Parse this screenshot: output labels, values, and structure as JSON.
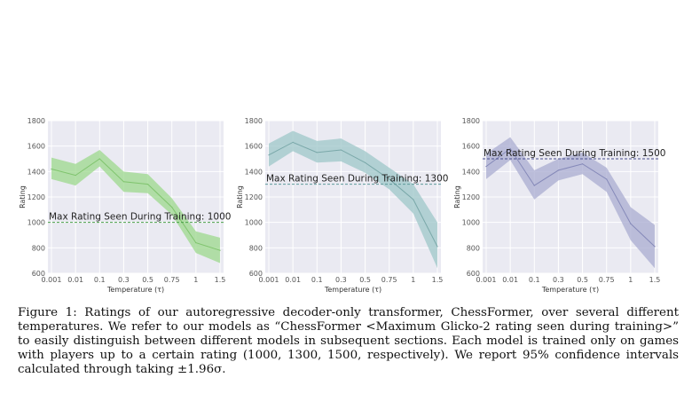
{
  "chart_data": [
    {
      "type": "line",
      "categories": [
        "0.001",
        "0.01",
        "0.1",
        "0.3",
        "0.5",
        "0.75",
        "1",
        "1.5"
      ],
      "values": [
        1420,
        1370,
        1500,
        1320,
        1300,
        1120,
        840,
        780
      ],
      "lower": [
        1340,
        1290,
        1440,
        1240,
        1230,
        1060,
        760,
        680
      ],
      "upper": [
        1510,
        1460,
        1570,
        1400,
        1380,
        1190,
        930,
        880
      ],
      "xlabel": "Temperature (τ)",
      "ylabel": "Rating",
      "ylim": [
        600,
        1800
      ],
      "yticks": [
        "600",
        "800",
        "1000",
        "1200",
        "1400",
        "1600",
        "1800"
      ],
      "reference": {
        "label": "Max Rating Seen During Training: 1000",
        "value": 1000
      },
      "color": "#9cd88c",
      "line_color": "#7fc46d",
      "ref_color": "#4aa04a",
      "grid": true
    },
    {
      "type": "line",
      "categories": [
        "0.001",
        "0.01",
        "0.1",
        "0.3",
        "0.5",
        "0.75",
        "1",
        "1.5"
      ],
      "values": [
        1530,
        1630,
        1550,
        1570,
        1470,
        1340,
        1180,
        810
      ],
      "lower": [
        1440,
        1560,
        1470,
        1480,
        1390,
        1260,
        1070,
        640
      ],
      "upper": [
        1620,
        1720,
        1640,
        1660,
        1560,
        1430,
        1300,
        1000
      ],
      "xlabel": "Temperature (τ)",
      "ylabel": "Rating",
      "ylim": [
        600,
        1800
      ],
      "yticks": [
        "600",
        "800",
        "1000",
        "1200",
        "1400",
        "1600",
        "1800"
      ],
      "reference": {
        "label": "Max Rating Seen During Training: 1300",
        "value": 1300
      },
      "color": "#9ec7c8",
      "line_color": "#7aa8a9",
      "ref_color": "#5f9a9a",
      "grid": true
    },
    {
      "type": "line",
      "categories": [
        "0.001",
        "0.01",
        "0.1",
        "0.3",
        "0.5",
        "0.75",
        "1",
        "1.5"
      ],
      "values": [
        1440,
        1580,
        1290,
        1410,
        1460,
        1340,
        990,
        810
      ],
      "lower": [
        1340,
        1490,
        1180,
        1330,
        1380,
        1240,
        860,
        640
      ],
      "upper": [
        1540,
        1670,
        1410,
        1500,
        1550,
        1430,
        1120,
        980
      ],
      "xlabel": "Temperature (τ)",
      "ylabel": "Rating",
      "ylim": [
        600,
        1800
      ],
      "yticks": [
        "600",
        "800",
        "1000",
        "1200",
        "1400",
        "1600",
        "1800"
      ],
      "reference": {
        "label": "Max Rating Seen During Training: 1500",
        "value": 1500
      },
      "color": "#a9acd0",
      "line_color": "#8488b8",
      "ref_color": "#4a4f8e",
      "grid": true
    }
  ],
  "caption": {
    "text": "Figure 1: Ratings of our autoregressive decoder-only transformer, ChessFormer, over several different temperatures. We refer to our models as “ChessFormer <Maximum Glicko-2 rating seen during training>” to easily distinguish between different models in subsequent sections. Each model is trained only on games with players up to a certain rating (1000, 1300, 1500, respectively). We report 95% confidence intervals calculated through taking ±1.96σ."
  }
}
